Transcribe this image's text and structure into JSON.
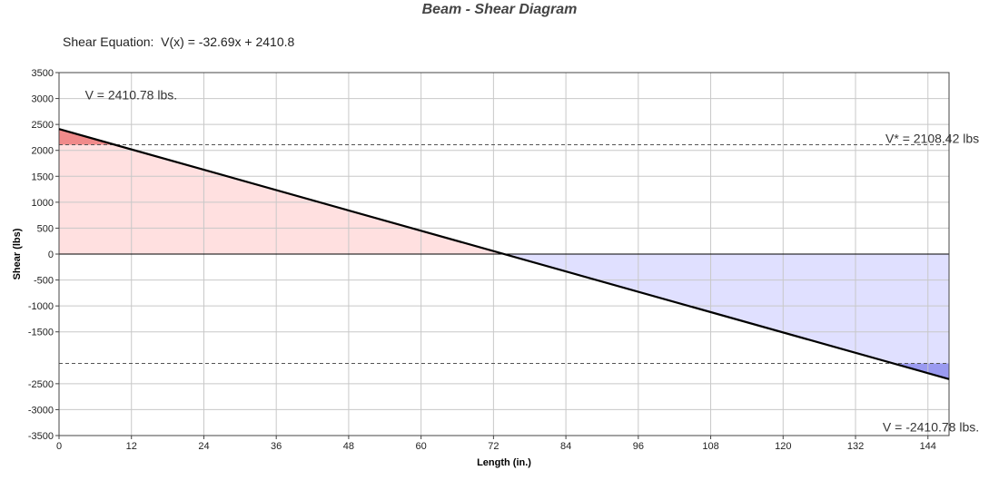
{
  "chart_data": {
    "type": "line",
    "title": "Beam - Shear Diagram",
    "equation_label": "Shear Equation:  V(x) = -32.69x + 2410.8",
    "xlabel": "Length (in.)",
    "ylabel": "Shear (lbs)",
    "xlim": [
      0,
      147.5
    ],
    "ylim": [
      -3500,
      3500
    ],
    "x_ticks": [
      0,
      12,
      24,
      36,
      48,
      60,
      72,
      84,
      96,
      108,
      120,
      132,
      144
    ],
    "y_ticks": [
      3500,
      3000,
      2500,
      2000,
      1500,
      1000,
      500,
      0,
      -500,
      -1000,
      -1500,
      -2500,
      -3000,
      -3500
    ],
    "grid": true,
    "series": [
      {
        "x": [
          0,
          147.5
        ],
        "y": [
          2410.78,
          -2410.78
        ],
        "color": "#000000"
      }
    ],
    "reference_lines": [
      {
        "y": 2108.42,
        "style": "dashed"
      },
      {
        "y": -2108.42,
        "style": "dashed"
      }
    ],
    "annotations": [
      {
        "text": "V = 2410.78 lbs.",
        "x": 4,
        "y": 3070
      },
      {
        "text": "V* = 2108.42 lbs",
        "x": 140,
        "y": 2230
      },
      {
        "text": "V = -2410.78 lbs.",
        "x": 140,
        "y": -3330
      }
    ],
    "colors": {
      "positive_fill": "#ffe0e0",
      "positive_excess_fill": "#f08a8a",
      "negative_fill": "#e0e0ff",
      "negative_excess_fill": "#9a9af0",
      "grid": "#c8c8c8"
    }
  }
}
